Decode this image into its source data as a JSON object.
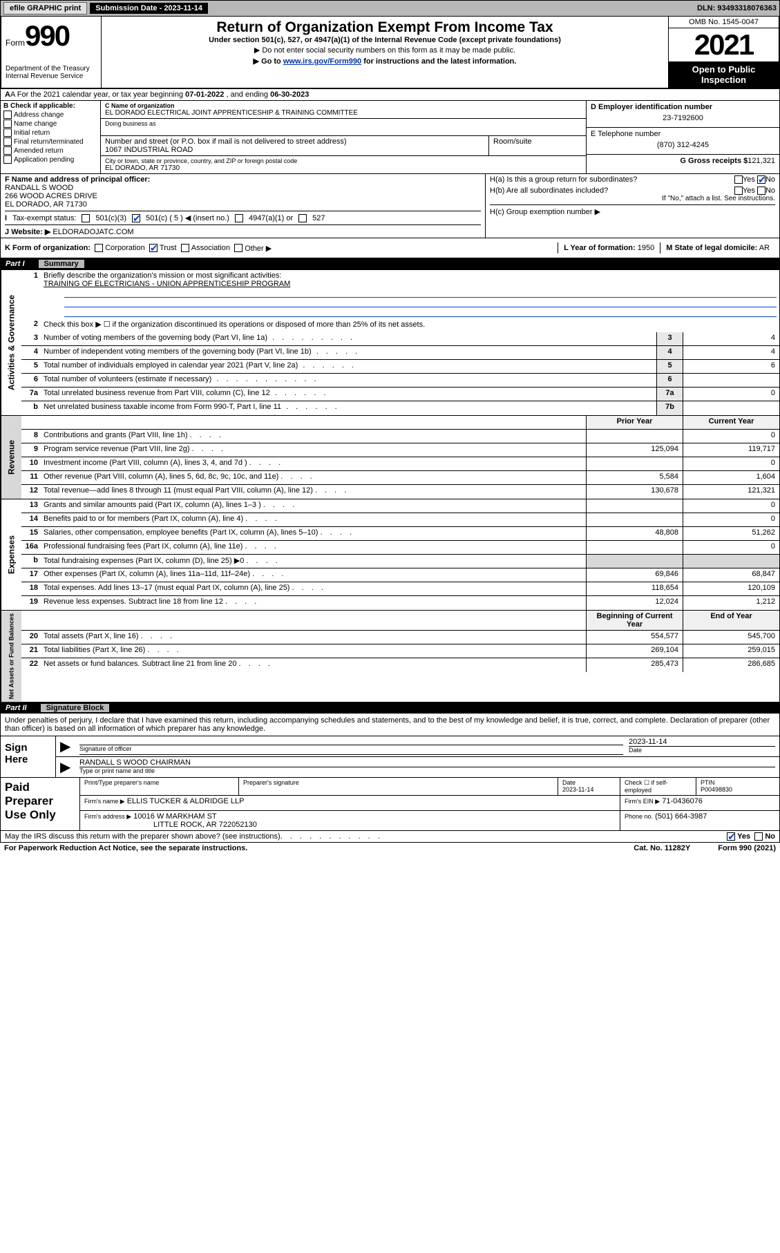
{
  "colors": {
    "topbar_bg": "#b8b8b8",
    "black": "#000000",
    "link": "#0033aa",
    "rule_blue": "#0044cc",
    "shade": "#d8d8d8"
  },
  "topbar": {
    "efile": "efile GRAPHIC print",
    "sub_label": "Submission Date - 2023-11-14",
    "dln": "DLN: 93493318076363"
  },
  "header": {
    "form_word": "Form",
    "form_num": "990",
    "title": "Return of Organization Exempt From Income Tax",
    "sub": "Under section 501(c), 527, or 4947(a)(1) of the Internal Revenue Code (except private foundations)",
    "note1": "▶ Do not enter social security numbers on this form as it may be made public.",
    "note2_pre": "▶ Go to ",
    "note2_link": "www.irs.gov/Form990",
    "note2_post": " for instructions and the latest information.",
    "dept": "Department of the Treasury",
    "irs": "Internal Revenue Service",
    "omb": "OMB No. 1545-0047",
    "year": "2021",
    "inspection": "Open to Public Inspection"
  },
  "rowA": {
    "text_pre": "A For the 2021 calendar year, or tax year beginning ",
    "begin": "07-01-2022",
    "mid": " , and ending ",
    "end": "06-30-2023"
  },
  "colB": {
    "header": "B Check if applicable:",
    "items": [
      "Address change",
      "Name change",
      "Initial return",
      "Final return/terminated",
      "Amended return",
      "Application pending"
    ]
  },
  "colC": {
    "name_label": "C Name of organization",
    "name": "EL DORADO ELECTRICAL JOINT APPRENTICESHIP & TRAINING COMMITTEE",
    "dba_label": "Doing business as",
    "addr_label": "Number and street (or P.O. box if mail is not delivered to street address)",
    "addr": "1067 INDUSTRIAL ROAD",
    "room_label": "Room/suite",
    "city_label": "City or town, state or province, country, and ZIP or foreign postal code",
    "city": "EL DORADO, AR  71730"
  },
  "colD": {
    "ein_label": "D Employer identification number",
    "ein": "23-7192600",
    "tel_label": "E Telephone number",
    "tel": "(870) 312-4245",
    "gross_label": "G Gross receipts $",
    "gross": "121,321"
  },
  "rowF": {
    "label": "F Name and address of principal officer:",
    "name": "RANDALL S WOOD",
    "addr1": "266 WOOD ACRES DRIVE",
    "addr2": "EL DORADO, AR  71730"
  },
  "rowH": {
    "ha": "H(a)  Is this a group return for subordinates?",
    "ha_yes": "Yes",
    "ha_no": "No",
    "hb": "H(b)  Are all subordinates included?",
    "hb_yes": "Yes",
    "hb_no": "No",
    "hb_note": "If \"No,\" attach a list. See instructions.",
    "hc": "H(c)  Group exemption number ▶"
  },
  "rowI": {
    "label": "Tax-exempt status:",
    "c3": "501(c)(3)",
    "c5": "501(c) ( 5 ) ◀ (insert no.)",
    "a1": "4947(a)(1) or",
    "s527": "527"
  },
  "rowJ": {
    "label": "Website: ▶",
    "value": "ELDORADOJATC.COM"
  },
  "rowK": {
    "label": "K Form of organization:",
    "opts": [
      "Corporation",
      "Trust",
      "Association",
      "Other ▶"
    ],
    "checked_idx": 1,
    "L_label": "L Year of formation:",
    "L_val": "1950",
    "M_label": "M State of legal domicile:",
    "M_val": "AR"
  },
  "part1": {
    "num": "Part I",
    "title": "Summary"
  },
  "gov": {
    "side": "Activities & Governance",
    "r1_num": "1",
    "r1": "Briefly describe the organization's mission or most significant activities:",
    "r1_val": "TRAINING OF ELECTRICIANS - UNION APPRENTICESHIP PROGRAM",
    "r2_num": "2",
    "r2": "Check this box ▶ ☐ if the organization discontinued its operations or disposed of more than 25% of its net assets.",
    "r3_num": "3",
    "r3": "Number of voting members of the governing body (Part VI, line 1a)",
    "r3_box": "3",
    "r3_val": "4",
    "r4_num": "4",
    "r4": "Number of independent voting members of the governing body (Part VI, line 1b)",
    "r4_box": "4",
    "r4_val": "4",
    "r5_num": "5",
    "r5": "Total number of individuals employed in calendar year 2021 (Part V, line 2a)",
    "r5_box": "5",
    "r5_val": "6",
    "r6_num": "6",
    "r6": "Total number of volunteers (estimate if necessary)",
    "r6_box": "6",
    "r6_val": "",
    "r7a_num": "7a",
    "r7a": "Total unrelated business revenue from Part VIII, column (C), line 12",
    "r7a_box": "7a",
    "r7a_val": "0",
    "r7b_num": "b",
    "r7b": "Net unrelated business taxable income from Form 990-T, Part I, line 11",
    "r7b_box": "7b",
    "r7b_val": ""
  },
  "rev": {
    "side": "Revenue",
    "head_py": "Prior Year",
    "head_cy": "Current Year",
    "rows": [
      {
        "n": "8",
        "d": "Contributions and grants (Part VIII, line 1h)",
        "py": "",
        "cy": "0"
      },
      {
        "n": "9",
        "d": "Program service revenue (Part VIII, line 2g)",
        "py": "125,094",
        "cy": "119,717"
      },
      {
        "n": "10",
        "d": "Investment income (Part VIII, column (A), lines 3, 4, and 7d )",
        "py": "",
        "cy": "0"
      },
      {
        "n": "11",
        "d": "Other revenue (Part VIII, column (A), lines 5, 6d, 8c, 9c, 10c, and 11e)",
        "py": "5,584",
        "cy": "1,604"
      },
      {
        "n": "12",
        "d": "Total revenue—add lines 8 through 11 (must equal Part VIII, column (A), line 12)",
        "py": "130,678",
        "cy": "121,321"
      }
    ]
  },
  "exp": {
    "side": "Expenses",
    "rows": [
      {
        "n": "13",
        "d": "Grants and similar amounts paid (Part IX, column (A), lines 1–3 )",
        "py": "",
        "cy": "0"
      },
      {
        "n": "14",
        "d": "Benefits paid to or for members (Part IX, column (A), line 4)",
        "py": "",
        "cy": "0"
      },
      {
        "n": "15",
        "d": "Salaries, other compensation, employee benefits (Part IX, column (A), lines 5–10)",
        "py": "48,808",
        "cy": "51,262"
      },
      {
        "n": "16a",
        "d": "Professional fundraising fees (Part IX, column (A), line 11e)",
        "py": "",
        "cy": "0"
      },
      {
        "n": "b",
        "d": "Total fundraising expenses (Part IX, column (D), line 25) ▶0",
        "py": "SHADE",
        "cy": "SHADE"
      },
      {
        "n": "17",
        "d": "Other expenses (Part IX, column (A), lines 11a–11d, 11f–24e)",
        "py": "69,846",
        "cy": "68,847"
      },
      {
        "n": "18",
        "d": "Total expenses. Add lines 13–17 (must equal Part IX, column (A), line 25)",
        "py": "118,654",
        "cy": "120,109"
      },
      {
        "n": "19",
        "d": "Revenue less expenses. Subtract line 18 from line 12",
        "py": "12,024",
        "cy": "1,212"
      }
    ]
  },
  "net": {
    "side": "Net Assets or Fund Balances",
    "head_py": "Beginning of Current Year",
    "head_cy": "End of Year",
    "rows": [
      {
        "n": "20",
        "d": "Total assets (Part X, line 16)",
        "py": "554,577",
        "cy": "545,700"
      },
      {
        "n": "21",
        "d": "Total liabilities (Part X, line 26)",
        "py": "269,104",
        "cy": "259,015"
      },
      {
        "n": "22",
        "d": "Net assets or fund balances. Subtract line 21 from line 20",
        "py": "285,473",
        "cy": "286,685"
      }
    ]
  },
  "part2": {
    "num": "Part II",
    "title": "Signature Block"
  },
  "sig": {
    "decl": "Under penalties of perjury, I declare that I have examined this return, including accompanying schedules and statements, and to the best of my knowledge and belief, it is true, correct, and complete. Declaration of preparer (other than officer) is based on all information of which preparer has any knowledge.",
    "sign_here": "Sign Here",
    "sig_officer": "Signature of officer",
    "date_label": "Date",
    "date": "2023-11-14",
    "officer": "RANDALL S WOOD  CHAIRMAN",
    "type_name": "Type or print name and title"
  },
  "paid": {
    "label": "Paid Preparer Use Only",
    "h1": "Print/Type preparer's name",
    "h2": "Preparer's signature",
    "h3": "Date",
    "h3_val": "2023-11-14",
    "h4": "Check ☐ if self-employed",
    "h5": "PTIN",
    "h5_val": "P00498830",
    "firm_name_label": "Firm's name    ▶",
    "firm_name": "ELLIS TUCKER & ALDRIDGE LLP",
    "firm_ein_label": "Firm's EIN ▶",
    "firm_ein": "71-0436076",
    "firm_addr_label": "Firm's address ▶",
    "firm_addr1": "10016 W MARKHAM ST",
    "firm_addr2": "LITTLE ROCK, AR  722052130",
    "phone_label": "Phone no.",
    "phone": "(501) 664-3987"
  },
  "footer": {
    "discuss": "May the IRS discuss this return with the preparer shown above? (see instructions)",
    "yes": "Yes",
    "no": "No",
    "pra": "For Paperwork Reduction Act Notice, see the separate instructions.",
    "cat": "Cat. No. 11282Y",
    "form": "Form 990 (2021)"
  }
}
